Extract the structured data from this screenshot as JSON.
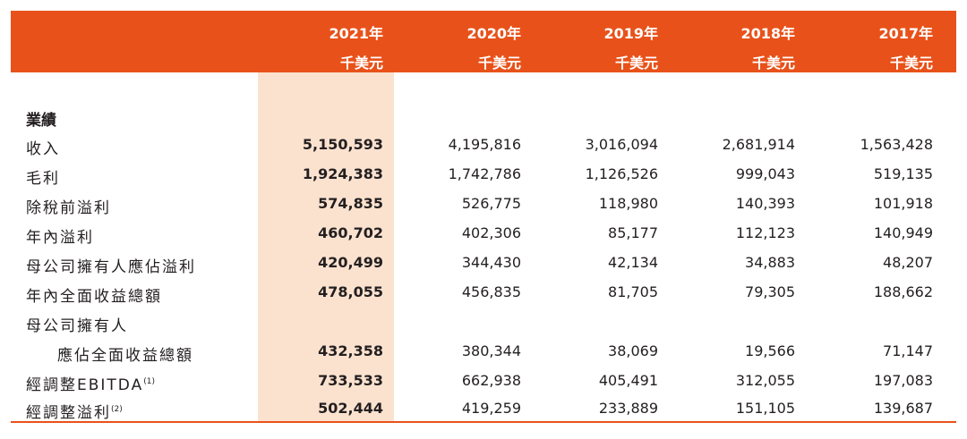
{
  "header": {
    "years": [
      "2021年",
      "2020年",
      "2019年",
      "2018年",
      "2017年"
    ],
    "units": [
      "千美元",
      "千美元",
      "千美元",
      "千美元",
      "千美元"
    ]
  },
  "section_title": "業績",
  "rows": [
    {
      "label": "收入",
      "values": [
        "5,150,593",
        "4,195,816",
        "3,016,094",
        "2,681,914",
        "1,563,428"
      ]
    },
    {
      "label": "毛利",
      "values": [
        "1,924,383",
        "1,742,786",
        "1,126,526",
        "999,043",
        "519,135"
      ]
    },
    {
      "label": "除稅前溢利",
      "values": [
        "574,835",
        "526,775",
        "118,980",
        "140,393",
        "101,918"
      ]
    },
    {
      "label": "年內溢利",
      "values": [
        "460,702",
        "402,306",
        "85,177",
        "112,123",
        "140,949"
      ]
    },
    {
      "label": "母公司擁有人應佔溢利",
      "values": [
        "420,499",
        "344,430",
        "42,134",
        "34,883",
        "48,207"
      ]
    },
    {
      "label": "年內全面收益總額",
      "values": [
        "478,055",
        "456,835",
        "81,705",
        "79,305",
        "188,662"
      ]
    },
    {
      "label": "母公司擁有人",
      "values": []
    },
    {
      "label": "應佔全面收益總額",
      "values": [
        "432,358",
        "380,344",
        "38,069",
        "19,566",
        "71,147"
      ]
    },
    {
      "label": "經調整EBITDA",
      "note": "(1)",
      "values": [
        "733,533",
        "662,938",
        "405,491",
        "312,055",
        "197,083"
      ]
    },
    {
      "label": "經調整溢利",
      "note": "(2)",
      "values": [
        "502,444",
        "419,259",
        "233,889",
        "151,105",
        "139,687"
      ]
    }
  ],
  "colors": {
    "accent": "#e8521a",
    "highlight": "#fbe2cf"
  }
}
